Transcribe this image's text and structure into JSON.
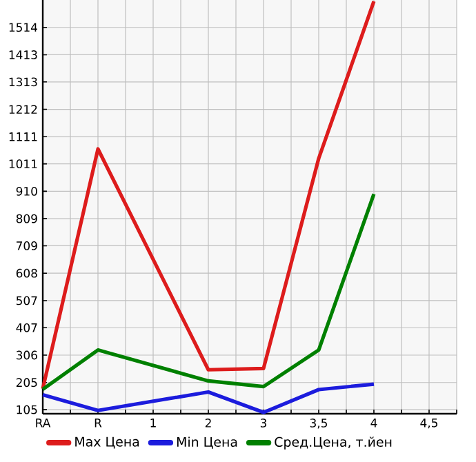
{
  "chart_data": {
    "type": "line",
    "categories": [
      "RA",
      "R",
      "1",
      "2",
      "3",
      "3,5",
      "4",
      "4,5"
    ],
    "series": [
      {
        "name": "Max Цена",
        "color": "#dd1c1c",
        "values": [
          182,
          1066,
          null,
          252,
          257,
          1031,
          1610,
          null
        ]
      },
      {
        "name": "Min Цена",
        "color": "#1c1cdd",
        "values": [
          160,
          102,
          null,
          170,
          95,
          179,
          199,
          null
        ]
      },
      {
        "name": "Сред.Цена, т.йен",
        "color": "#008000",
        "values": [
          180,
          325,
          null,
          211,
          190,
          325,
          900,
          null
        ]
      }
    ],
    "ylim": [
      90,
      1615
    ],
    "yticks": [
      105,
      205,
      306,
      407,
      507,
      608,
      709,
      809,
      910,
      1011,
      1111,
      1212,
      1313,
      1413,
      1514
    ],
    "grid": true,
    "legend": "bottom",
    "marker": "none",
    "line_style": "solid"
  }
}
